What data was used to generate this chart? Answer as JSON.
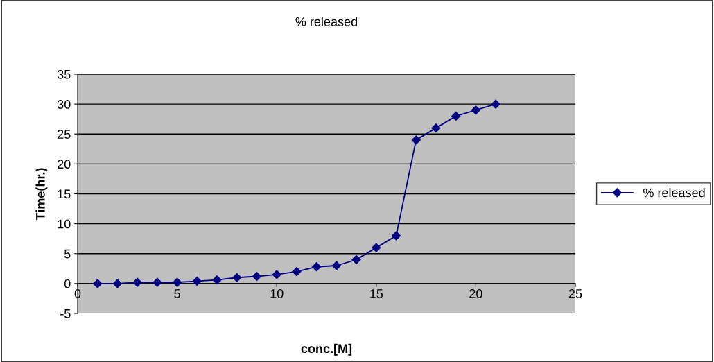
{
  "chart_data": {
    "type": "line",
    "title": "% released",
    "xlabel": "conc.[M]",
    "ylabel": "Time(hr.)",
    "x": [
      1,
      2,
      3,
      4,
      5,
      6,
      7,
      8,
      9,
      10,
      11,
      12,
      13,
      14,
      15,
      16,
      17,
      18,
      19,
      20,
      21
    ],
    "series": [
      {
        "name": "% released",
        "color": "#000080",
        "values": [
          0,
          0,
          0.2,
          0.2,
          0.2,
          0.4,
          0.6,
          1,
          1.2,
          1.5,
          2,
          2.8,
          3,
          4,
          6,
          8,
          24,
          26,
          28,
          29,
          30
        ]
      }
    ],
    "xlim": [
      0,
      25
    ],
    "xticks": [
      0,
      5,
      10,
      15,
      20,
      25
    ],
    "ylim": [
      -5,
      35
    ],
    "yticks": [
      -5,
      0,
      5,
      10,
      15,
      20,
      25,
      30,
      35
    ],
    "grid": "y",
    "legend": "right",
    "marker": "diamond",
    "line_style": "solid"
  }
}
